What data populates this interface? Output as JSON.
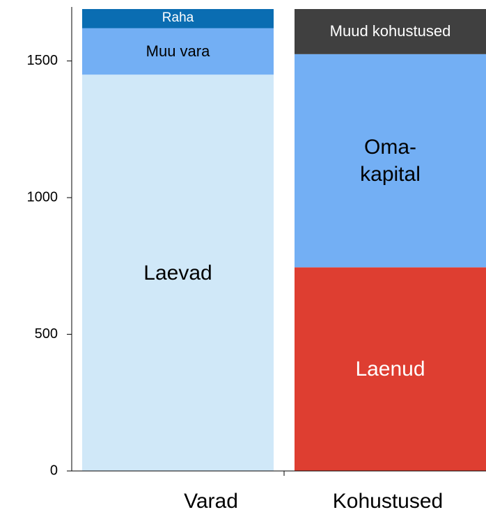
{
  "chart_data": {
    "type": "stacked_bar",
    "categories": [
      "Varad",
      "Kohustused"
    ],
    "series": [
      {
        "name": "Laevad",
        "color": "#d0e8f8",
        "values": [
          1450,
          null
        ]
      },
      {
        "name": "Muu vara",
        "color": "#73aff4",
        "values": [
          170,
          null
        ]
      },
      {
        "name": "Raha",
        "color": "#0a6db2",
        "values": [
          70,
          null
        ]
      },
      {
        "name": "Laenud",
        "color": "#de3e31",
        "values": [
          null,
          745
        ]
      },
      {
        "name": "Oma-kapital",
        "color": "#73aff4",
        "values": [
          null,
          780
        ]
      },
      {
        "name": "Muud kohustused",
        "color": "#404040",
        "values": [
          null,
          165
        ]
      }
    ],
    "ylim": [
      0,
      1690
    ],
    "yticks": [
      0,
      500,
      1000,
      1500
    ]
  }
}
